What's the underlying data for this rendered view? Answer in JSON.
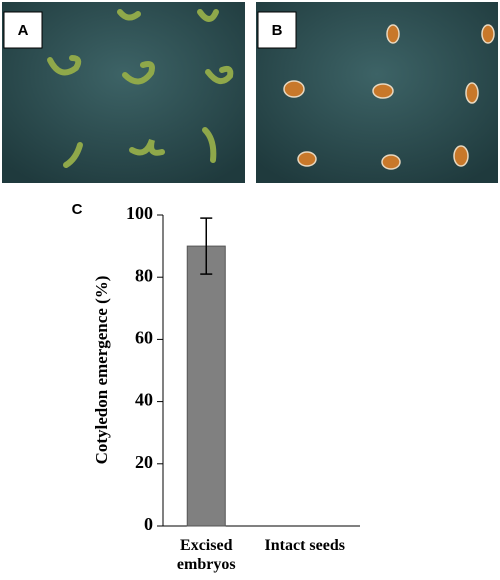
{
  "panel_labels": [
    "A",
    "B",
    "C"
  ],
  "chart_data": {
    "type": "bar",
    "ylabel": "Cotyledon emergence (%)",
    "categories": [
      "Excised embryos",
      "Intact seeds"
    ],
    "values": [
      90,
      0
    ],
    "errors": [
      9,
      null
    ],
    "color": "#808080",
    "ylim": [
      0,
      100
    ],
    "yticks": [
      0,
      20,
      40,
      60,
      80,
      100
    ],
    "grid": false
  }
}
